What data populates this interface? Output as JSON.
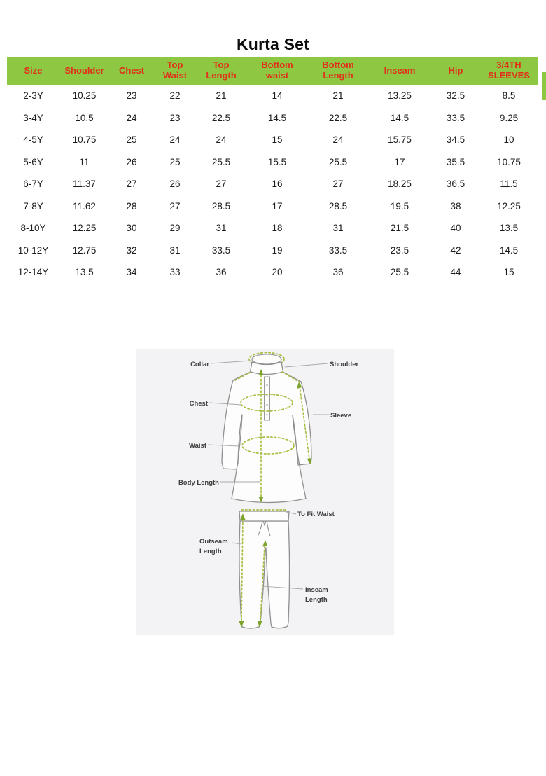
{
  "title": "Kurta Set",
  "colors": {
    "header_bg": "#8ec843",
    "header_text": "#e0311a",
    "measure_green": "#a6c043",
    "arrow_green": "#7ea42e",
    "diagram_bg": "#f3f3f5",
    "outline_gray": "#8f8f8f",
    "body_text": "#1b1b1b"
  },
  "table": {
    "columns": [
      "Size",
      "Shoulder",
      "Chest",
      "Top Waist",
      "Top Length",
      "Bottom waist",
      "Bottom Length",
      "Inseam",
      "Hip",
      "3/4TH SLEEVES"
    ],
    "rows": [
      [
        "2-3Y",
        "10.25",
        "23",
        "22",
        "21",
        "14",
        "21",
        "13.25",
        "32.5",
        "8.5"
      ],
      [
        "3-4Y",
        "10.5",
        "24",
        "23",
        "22.5",
        "14.5",
        "22.5",
        "14.5",
        "33.5",
        "9.25"
      ],
      [
        "4-5Y",
        "10.75",
        "25",
        "24",
        "24",
        "15",
        "24",
        "15.75",
        "34.5",
        "10"
      ],
      [
        "5-6Y",
        "11",
        "26",
        "25",
        "25.5",
        "15.5",
        "25.5",
        "17",
        "35.5",
        "10.75"
      ],
      [
        "6-7Y",
        "11.37",
        "27",
        "26",
        "27",
        "16",
        "27",
        "18.25",
        "36.5",
        "11.5"
      ],
      [
        "7-8Y",
        "11.62",
        "28",
        "27",
        "28.5",
        "17",
        "28.5",
        "19.5",
        "38",
        "12.25"
      ],
      [
        "8-10Y",
        "12.25",
        "30",
        "29",
        "31",
        "18",
        "31",
        "21.5",
        "40",
        "13.5"
      ],
      [
        "10-12Y",
        "12.75",
        "32",
        "31",
        "33.5",
        "19",
        "33.5",
        "23.5",
        "42",
        "14.5"
      ],
      [
        "12-14Y",
        "13.5",
        "34",
        "33",
        "36",
        "20",
        "36",
        "25.5",
        "44",
        "15"
      ]
    ]
  },
  "diagram": {
    "collar": "Collar",
    "shoulder": "Shoulder",
    "chest": "Chest",
    "sleeve": "Sleeve",
    "waist": "Waist",
    "body_length": "Body Length",
    "to_fit_waist": "To Fit Waist",
    "outseam_line1": "Outseam",
    "outseam_line2": "Length",
    "inseam_line1": "Inseam",
    "inseam_line2": "Length"
  }
}
